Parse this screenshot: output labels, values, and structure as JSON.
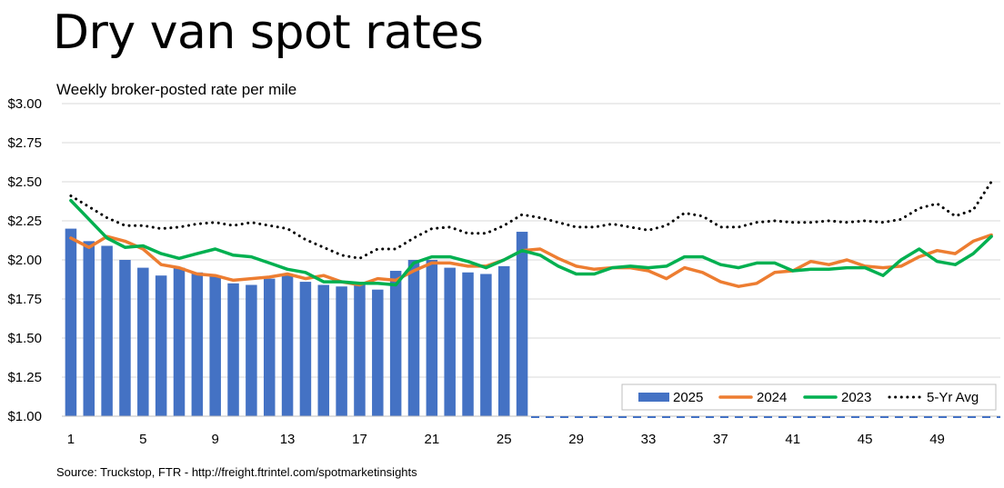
{
  "chart_data": {
    "type": "bar",
    "title": "Dry van spot rates",
    "subtitle": "Weekly broker-posted rate per mile",
    "source": "Source: Truckstop, FTR - http://freight.ftrintel.com/spotmarketinsights",
    "xlabel": "",
    "ylabel": "",
    "ylim": [
      1.0,
      3.0
    ],
    "y_ticks": [
      "$1.00",
      "$1.25",
      "$1.50",
      "$1.75",
      "$2.00",
      "$2.25",
      "$2.50",
      "$2.75",
      "$3.00"
    ],
    "y_tick_values": [
      1.0,
      1.25,
      1.5,
      1.75,
      2.0,
      2.25,
      2.5,
      2.75,
      3.0
    ],
    "x": [
      1,
      2,
      3,
      4,
      5,
      6,
      7,
      8,
      9,
      10,
      11,
      12,
      13,
      14,
      15,
      16,
      17,
      18,
      19,
      20,
      21,
      22,
      23,
      24,
      25,
      26,
      27,
      28,
      29,
      30,
      31,
      32,
      33,
      34,
      35,
      36,
      37,
      38,
      39,
      40,
      41,
      42,
      43,
      44,
      45,
      46,
      47,
      48,
      49,
      50,
      51,
      52
    ],
    "x_tick_labels": [
      "1",
      "5",
      "9",
      "13",
      "17",
      "21",
      "25",
      "29",
      "33",
      "37",
      "41",
      "45",
      "49"
    ],
    "x_tick_values": [
      1,
      5,
      9,
      13,
      17,
      21,
      25,
      29,
      33,
      37,
      41,
      45,
      49
    ],
    "grid": "horizontal",
    "legend_position": "bottom-right",
    "series": [
      {
        "name": "2025",
        "kind": "bar",
        "color": "#4472C4",
        "values": [
          2.2,
          2.12,
          2.09,
          2.0,
          1.95,
          1.9,
          1.95,
          1.92,
          1.9,
          1.85,
          1.84,
          1.88,
          1.9,
          1.86,
          1.84,
          1.83,
          1.84,
          1.81,
          1.93,
          2.0,
          2.0,
          1.95,
          1.92,
          1.91,
          1.96,
          2.18,
          null,
          null,
          null,
          null,
          null,
          null,
          null,
          null,
          null,
          null,
          null,
          null,
          null,
          null,
          null,
          null,
          null,
          null,
          null,
          null,
          null,
          null,
          null,
          null,
          null,
          null
        ]
      },
      {
        "name": "2024",
        "kind": "line",
        "color": "#ED7D31",
        "values": [
          2.14,
          2.08,
          2.15,
          2.12,
          2.07,
          1.97,
          1.95,
          1.91,
          1.9,
          1.87,
          1.88,
          1.89,
          1.91,
          1.88,
          1.9,
          1.86,
          1.84,
          1.88,
          1.87,
          1.93,
          1.98,
          1.98,
          1.96,
          1.96,
          2.0,
          2.06,
          2.07,
          2.01,
          1.96,
          1.94,
          1.95,
          1.95,
          1.93,
          1.88,
          1.95,
          1.92,
          1.86,
          1.83,
          1.85,
          1.92,
          1.93,
          1.99,
          1.97,
          2.0,
          1.96,
          1.95,
          1.96,
          2.02,
          2.06,
          2.04,
          2.12,
          2.16
        ]
      },
      {
        "name": "2023",
        "kind": "line",
        "color": "#00B050",
        "values": [
          2.38,
          2.26,
          2.14,
          2.08,
          2.09,
          2.04,
          2.01,
          2.04,
          2.07,
          2.03,
          2.02,
          1.98,
          1.94,
          1.92,
          1.86,
          1.86,
          1.85,
          1.85,
          1.84,
          1.98,
          2.02,
          2.02,
          1.99,
          1.95,
          2.0,
          2.06,
          2.03,
          1.96,
          1.91,
          1.91,
          1.95,
          1.96,
          1.95,
          1.96,
          2.02,
          2.02,
          1.97,
          1.95,
          1.98,
          1.98,
          1.93,
          1.94,
          1.94,
          1.95,
          1.95,
          1.9,
          2.0,
          2.07,
          1.99,
          1.97,
          2.04,
          2.15
        ]
      },
      {
        "name": "5-Yr Avg",
        "kind": "dotted-line",
        "color": "#000000",
        "values": [
          2.41,
          2.34,
          2.27,
          2.22,
          2.22,
          2.2,
          2.21,
          2.23,
          2.24,
          2.22,
          2.24,
          2.22,
          2.2,
          2.13,
          2.08,
          2.03,
          2.01,
          2.07,
          2.07,
          2.14,
          2.2,
          2.21,
          2.17,
          2.17,
          2.22,
          2.29,
          2.27,
          2.24,
          2.21,
          2.21,
          2.23,
          2.21,
          2.19,
          2.22,
          2.3,
          2.28,
          2.21,
          2.21,
          2.24,
          2.25,
          2.24,
          2.24,
          2.25,
          2.24,
          2.25,
          2.24,
          2.26,
          2.33,
          2.36,
          2.28,
          2.32,
          2.5
        ]
      }
    ]
  }
}
